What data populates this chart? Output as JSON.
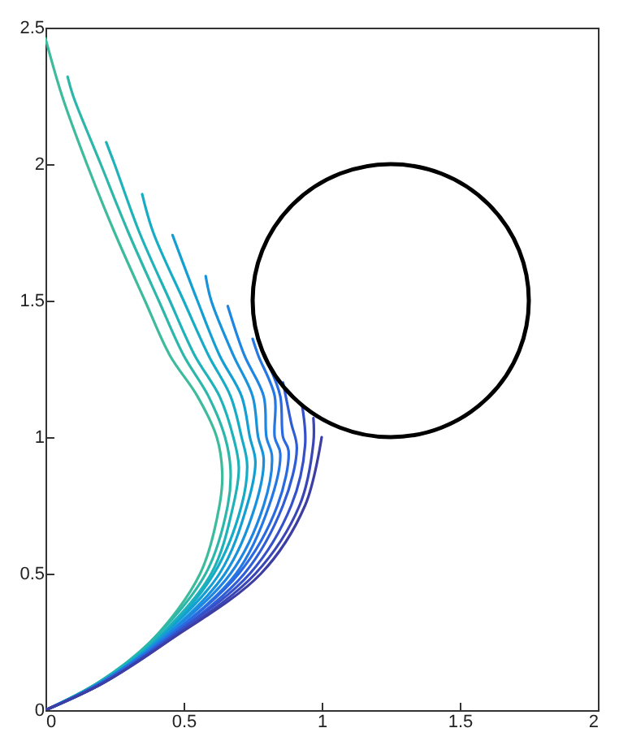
{
  "chart_data": {
    "type": "line",
    "xlim": [
      0,
      2
    ],
    "xticks": [
      0,
      0.5,
      1,
      1.5,
      2
    ],
    "ylim": [
      0,
      2.5
    ],
    "yticks": [
      0,
      0.5,
      1,
      1.5,
      2,
      2.5
    ],
    "line_style": "solid",
    "series": [
      {
        "color": "#3dbb9c",
        "x": [
          0,
          0.19,
          0.38,
          0.56,
          0.63,
          0.64,
          0.62,
          0.55,
          0.45,
          0.36,
          0.25,
          0.15,
          0.06,
          0.0
        ],
        "values": [
          0,
          0.1,
          0.25,
          0.5,
          0.75,
          0.87,
          1.0,
          1.15,
          1.3,
          1.5,
          1.75,
          2.0,
          2.25,
          2.46
        ]
      },
      {
        "color": "#2db7aa",
        "x": [
          0,
          0.19,
          0.38,
          0.58,
          0.66,
          0.67,
          0.65,
          0.59,
          0.5,
          0.41,
          0.3,
          0.2,
          0.1,
          0.08
        ],
        "values": [
          0,
          0.1,
          0.25,
          0.5,
          0.75,
          0.88,
          1.0,
          1.15,
          1.3,
          1.5,
          1.75,
          2.0,
          2.25,
          2.32
        ]
      },
      {
        "color": "#1fb2b8",
        "x": [
          0,
          0.19,
          0.39,
          0.6,
          0.68,
          0.7,
          0.68,
          0.63,
          0.54,
          0.45,
          0.34,
          0.25,
          0.22
        ],
        "values": [
          0,
          0.1,
          0.25,
          0.5,
          0.75,
          0.89,
          1.0,
          1.15,
          1.3,
          1.5,
          1.75,
          2.0,
          2.08
        ]
      },
      {
        "color": "#17acc6",
        "x": [
          0,
          0.2,
          0.4,
          0.61,
          0.71,
          0.73,
          0.71,
          0.67,
          0.59,
          0.5,
          0.39,
          0.35
        ],
        "values": [
          0,
          0.1,
          0.25,
          0.5,
          0.75,
          0.9,
          1.0,
          1.15,
          1.3,
          1.5,
          1.75,
          1.89
        ]
      },
      {
        "color": "#149fd2",
        "x": [
          0,
          0.2,
          0.4,
          0.63,
          0.73,
          0.76,
          0.74,
          0.71,
          0.63,
          0.55,
          0.46
        ],
        "values": [
          0,
          0.1,
          0.25,
          0.5,
          0.75,
          0.91,
          1.0,
          1.15,
          1.3,
          1.5,
          1.74
        ]
      },
      {
        "color": "#1792db",
        "x": [
          0,
          0.2,
          0.41,
          0.65,
          0.76,
          0.79,
          0.77,
          0.75,
          0.68,
          0.6,
          0.58
        ],
        "values": [
          0,
          0.1,
          0.25,
          0.5,
          0.75,
          0.92,
          1.0,
          1.15,
          1.3,
          1.5,
          1.59
        ]
      },
      {
        "color": "#1e85e2",
        "x": [
          0,
          0.2,
          0.41,
          0.67,
          0.79,
          0.82,
          0.8,
          0.79,
          0.72,
          0.66
        ],
        "values": [
          0,
          0.1,
          0.25,
          0.5,
          0.75,
          0.93,
          1.0,
          1.15,
          1.3,
          1.48
        ]
      },
      {
        "color": "#2477e4",
        "x": [
          0,
          0.2,
          0.42,
          0.69,
          0.81,
          0.85,
          0.83,
          0.83,
          0.77,
          0.75
        ],
        "values": [
          0,
          0.1,
          0.25,
          0.5,
          0.75,
          0.94,
          1.0,
          1.15,
          1.3,
          1.36
        ]
      },
      {
        "color": "#2a6ae0",
        "x": [
          0,
          0.2,
          0.42,
          0.7,
          0.84,
          0.88,
          0.86,
          0.85,
          0.81
        ],
        "values": [
          0,
          0.1,
          0.25,
          0.5,
          0.75,
          0.95,
          1.0,
          1.15,
          1.26
        ]
      },
      {
        "color": "#305dd6",
        "x": [
          0,
          0.21,
          0.43,
          0.72,
          0.86,
          0.91,
          0.89,
          0.86
        ],
        "values": [
          0,
          0.1,
          0.25,
          0.5,
          0.75,
          0.96,
          1.05,
          1.2
        ]
      },
      {
        "color": "#3550c8",
        "x": [
          0,
          0.21,
          0.43,
          0.74,
          0.89,
          0.94,
          0.93
        ],
        "values": [
          0,
          0.1,
          0.25,
          0.5,
          0.75,
          0.97,
          1.11
        ]
      },
      {
        "color": "#3a46b6",
        "x": [
          0,
          0.21,
          0.44,
          0.76,
          0.92,
          0.97,
          0.97
        ],
        "values": [
          0,
          0.1,
          0.25,
          0.5,
          0.75,
          0.98,
          1.07
        ]
      },
      {
        "color": "#3d3ea3",
        "x": [
          0,
          0.21,
          0.44,
          0.78,
          0.94,
          1.0
        ],
        "values": [
          0,
          0.1,
          0.25,
          0.5,
          0.75,
          1.0
        ]
      }
    ]
  }
}
